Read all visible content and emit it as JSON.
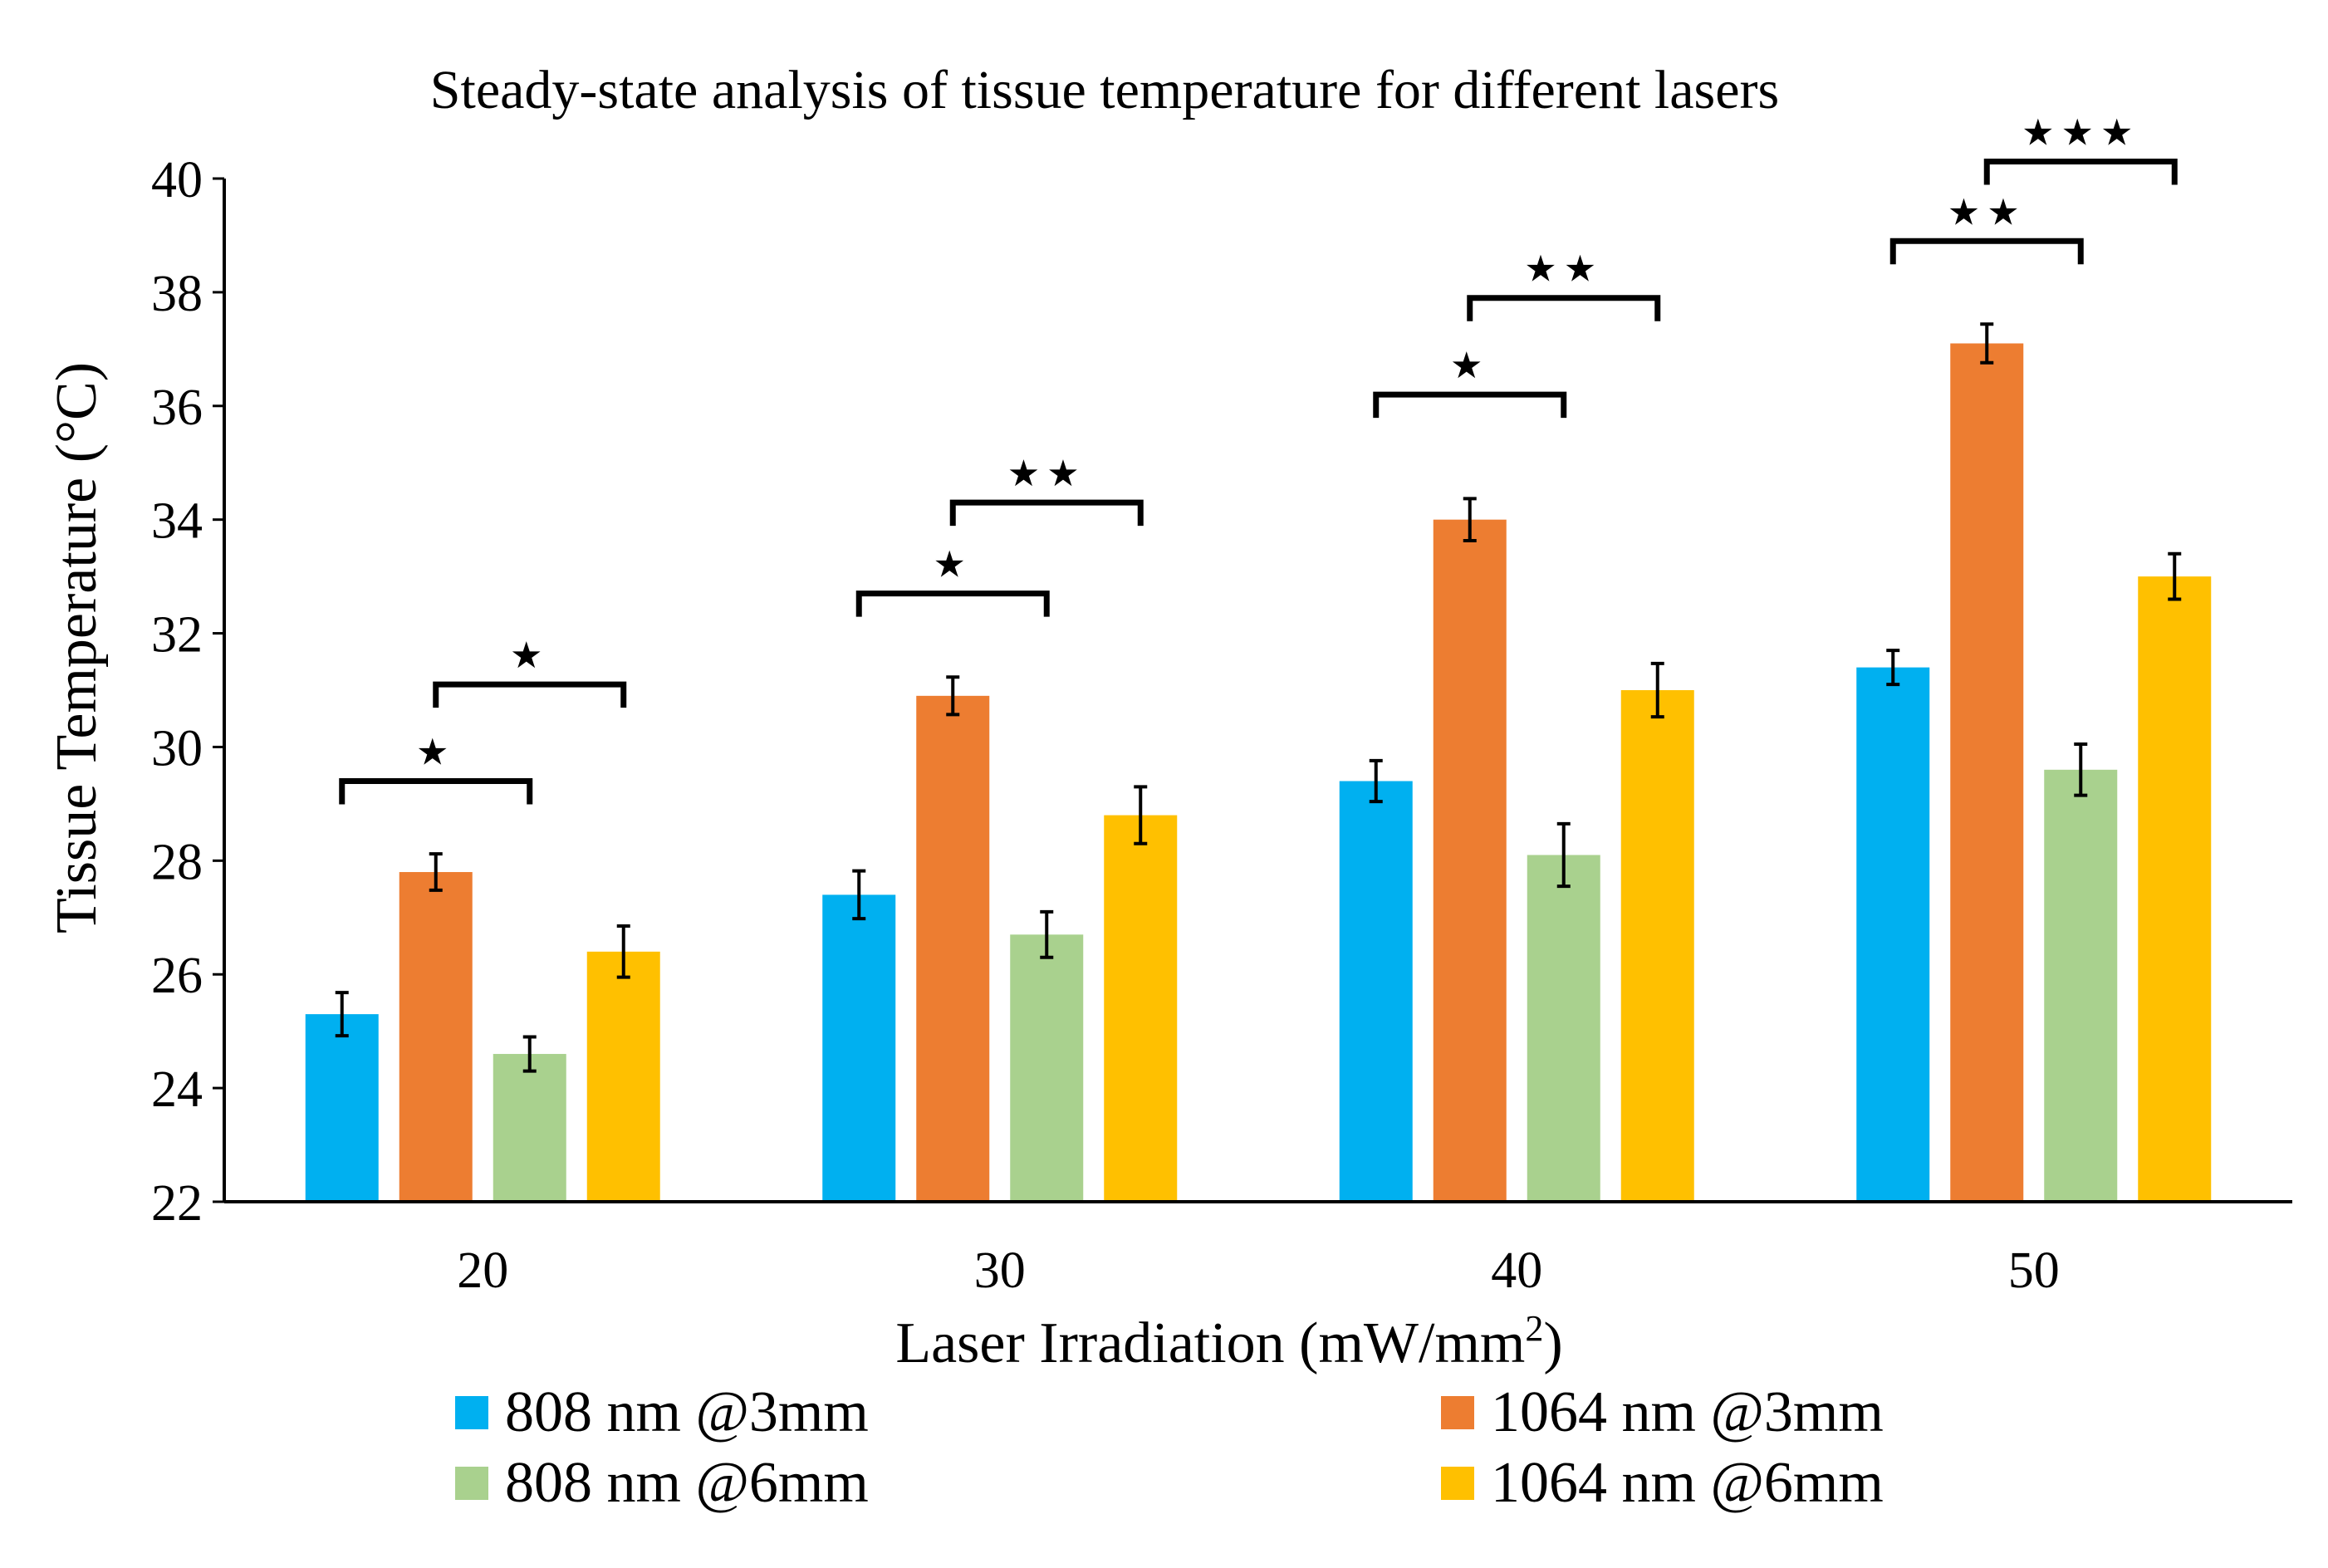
{
  "chart_data": {
    "type": "bar",
    "title": "Steady-state analysis of tissue temperature for different lasers",
    "xlabel": "Laser Irradiation (mW/mm",
    "xlabel_sup": "2",
    "xlabel_end": ")",
    "ylabel": "Tissue Temperature (°C)",
    "ylim": [
      22,
      40
    ],
    "yticks": [
      22,
      24,
      26,
      28,
      30,
      32,
      34,
      36,
      38,
      40
    ],
    "categories": [
      "20",
      "30",
      "40",
      "50"
    ],
    "grid": false,
    "legend": "bottom",
    "series": [
      {
        "name": "808 nm @3mm",
        "color": "#00B0F0",
        "values": [
          25.3,
          27.4,
          29.4,
          31.4
        ],
        "errors": [
          0.38,
          0.42,
          0.36,
          0.3
        ]
      },
      {
        "name": "1064 nm @3mm",
        "color": "#ED7D31",
        "values": [
          27.8,
          30.9,
          34.0,
          37.1
        ],
        "errors": [
          0.32,
          0.33,
          0.37,
          0.34
        ]
      },
      {
        "name": "808 nm @6mm",
        "color": "#A9D18E",
        "values": [
          24.6,
          26.7,
          28.1,
          29.6
        ],
        "errors": [
          0.3,
          0.4,
          0.55,
          0.45
        ]
      },
      {
        "name": "1064 nm @6mm",
        "color": "#FFC000",
        "values": [
          26.4,
          28.8,
          31.0,
          33.0
        ],
        "errors": [
          0.45,
          0.5,
          0.47,
          0.4
        ]
      }
    ],
    "annotations": [
      {
        "category": "20",
        "from_series": 0,
        "to_series": 2,
        "y": 29.4,
        "label": "★"
      },
      {
        "category": "20",
        "from_series": 1,
        "to_series": 3,
        "y": 31.1,
        "label": "★"
      },
      {
        "category": "30",
        "from_series": 0,
        "to_series": 2,
        "y": 32.7,
        "label": "★"
      },
      {
        "category": "30",
        "from_series": 1,
        "to_series": 3,
        "y": 34.3,
        "label": "★★"
      },
      {
        "category": "40",
        "from_series": 0,
        "to_series": 2,
        "y": 36.2,
        "label": "★"
      },
      {
        "category": "40",
        "from_series": 1,
        "to_series": 3,
        "y": 37.9,
        "label": "★★"
      },
      {
        "category": "50",
        "from_series": 0,
        "to_series": 2,
        "y": 38.9,
        "label": "★★"
      },
      {
        "category": "50",
        "from_series": 1,
        "to_series": 3,
        "y": 40.3,
        "label": "★★★"
      }
    ]
  }
}
